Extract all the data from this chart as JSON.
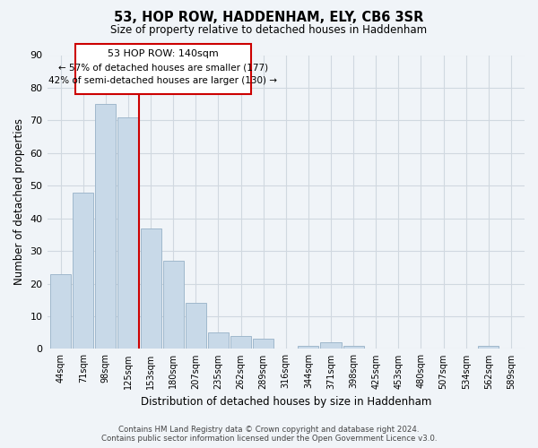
{
  "title": "53, HOP ROW, HADDENHAM, ELY, CB6 3SR",
  "subtitle": "Size of property relative to detached houses in Haddenham",
  "xlabel": "Distribution of detached houses by size in Haddenham",
  "ylabel": "Number of detached properties",
  "bar_labels": [
    "44sqm",
    "71sqm",
    "98sqm",
    "125sqm",
    "153sqm",
    "180sqm",
    "207sqm",
    "235sqm",
    "262sqm",
    "289sqm",
    "316sqm",
    "344sqm",
    "371sqm",
    "398sqm",
    "425sqm",
    "453sqm",
    "480sqm",
    "507sqm",
    "534sqm",
    "562sqm",
    "589sqm"
  ],
  "bar_heights": [
    23,
    48,
    75,
    71,
    37,
    27,
    14,
    5,
    4,
    3,
    0,
    1,
    2,
    1,
    0,
    0,
    0,
    0,
    0,
    1,
    0
  ],
  "bar_color": "#c8d9e8",
  "bar_edge_color": "#a0b8cc",
  "grid_color": "#d0d8e0",
  "background_color": "#f0f4f8",
  "vline_color": "#cc0000",
  "annotation_title": "53 HOP ROW: 140sqm",
  "annotation_line1": "← 57% of detached houses are smaller (177)",
  "annotation_line2": "42% of semi-detached houses are larger (130) →",
  "annotation_box_color": "#ffffff",
  "annotation_box_edge": "#cc0000",
  "ylim": [
    0,
    90
  ],
  "yticks": [
    0,
    10,
    20,
    30,
    40,
    50,
    60,
    70,
    80,
    90
  ],
  "footer_line1": "Contains HM Land Registry data © Crown copyright and database right 2024.",
  "footer_line2": "Contains public sector information licensed under the Open Government Licence v3.0."
}
